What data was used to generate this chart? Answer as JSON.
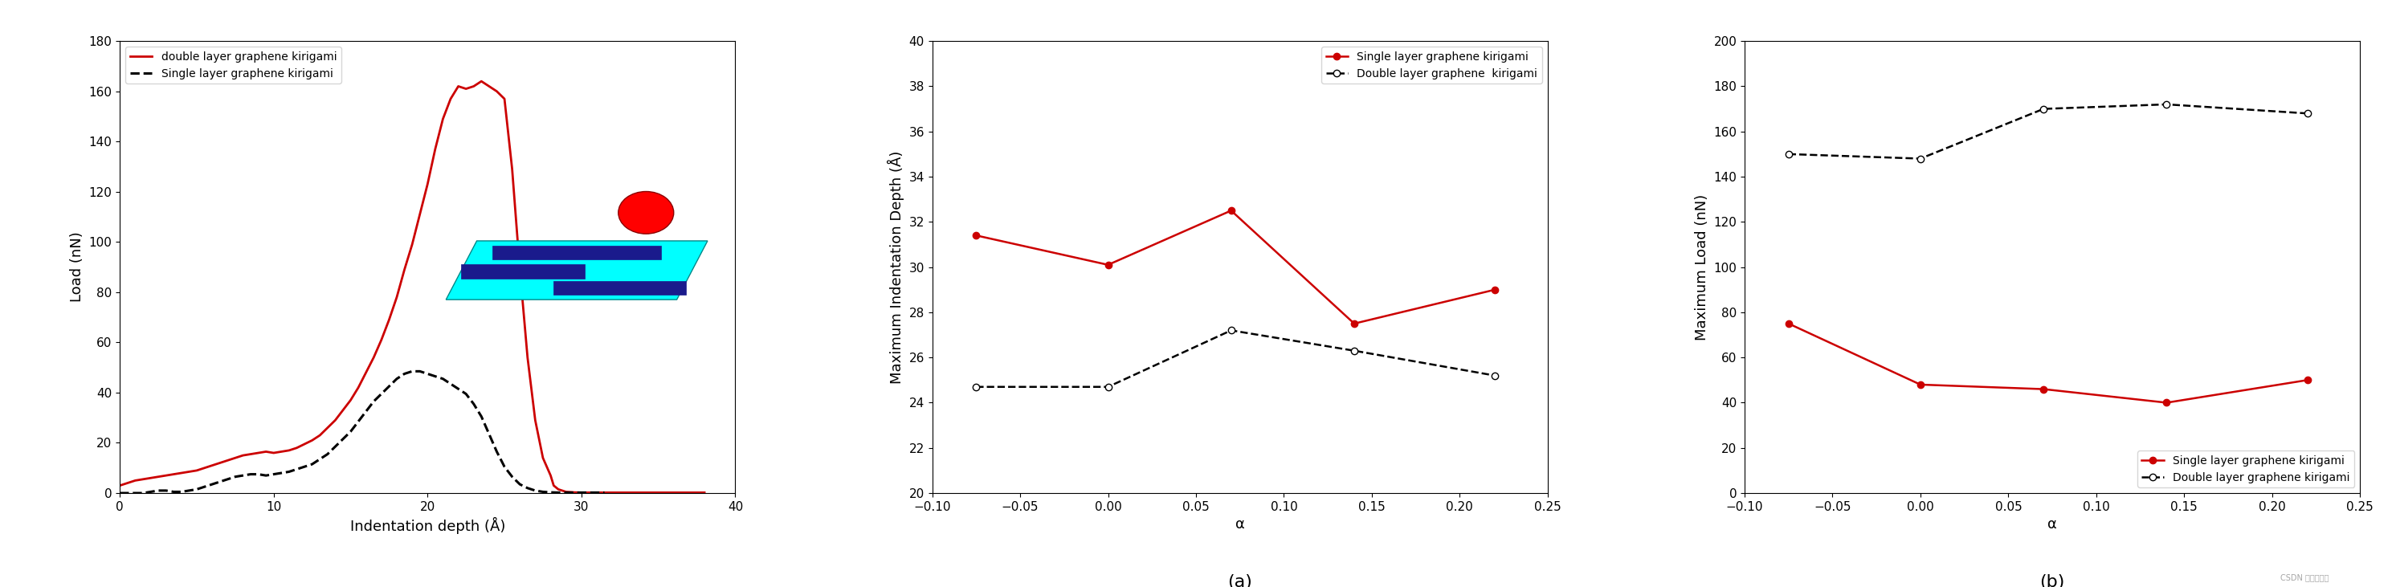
{
  "plot1": {
    "xlabel": "Indentation depth (Å)",
    "ylabel": "Load (nN)",
    "xlim": [
      0,
      40
    ],
    "ylim": [
      0,
      180
    ],
    "yticks": [
      0,
      20,
      40,
      60,
      80,
      100,
      120,
      140,
      160,
      180
    ],
    "xticks": [
      0,
      10,
      20,
      30,
      40
    ],
    "double_layer": {
      "label": "double layer graphene kirigami",
      "color": "#cc0000",
      "linestyle": "solid",
      "x": [
        0,
        0.5,
        1.0,
        1.5,
        2.0,
        2.5,
        3.0,
        3.5,
        4.0,
        4.5,
        5.0,
        5.5,
        6.0,
        6.5,
        7.0,
        7.5,
        8.0,
        8.5,
        9.0,
        9.5,
        10.0,
        10.5,
        11.0,
        11.5,
        12.0,
        12.5,
        13.0,
        13.5,
        14.0,
        14.5,
        15.0,
        15.5,
        16.0,
        16.5,
        17.0,
        17.5,
        18.0,
        18.5,
        19.0,
        19.5,
        20.0,
        20.5,
        21.0,
        21.5,
        22.0,
        22.5,
        23.0,
        23.5,
        24.0,
        24.5,
        25.0,
        25.5,
        26.0,
        26.5,
        27.0,
        27.5,
        28.0,
        28.2,
        28.5,
        29.0,
        29.5,
        30.0,
        30.5,
        31.0,
        31.5,
        32.0,
        33.0,
        34.0,
        35.0,
        36.0,
        37.0,
        38.0
      ],
      "y": [
        3,
        4,
        5,
        5.5,
        6,
        6.5,
        7,
        7.5,
        8,
        8.5,
        9,
        10,
        11,
        12,
        13,
        14,
        15,
        15.5,
        16,
        16.5,
        16,
        16.5,
        17,
        18,
        19.5,
        21,
        23,
        26,
        29,
        33,
        37,
        42,
        48,
        54,
        61,
        69,
        78,
        89,
        99,
        111,
        123,
        137,
        149,
        157,
        162,
        161,
        162,
        164,
        162,
        160,
        157,
        129,
        89,
        54,
        29,
        14,
        7,
        3,
        1.5,
        0.5,
        0.3,
        0.2,
        0.2,
        0.2,
        0.2,
        0.2,
        0.2,
        0.2,
        0.2,
        0.2,
        0.2,
        0.2
      ]
    },
    "single_layer": {
      "label": "Single layer graphene kirigami",
      "color": "#000000",
      "linestyle": "dashed",
      "x": [
        0,
        0.5,
        1.0,
        1.5,
        2.0,
        2.5,
        3.0,
        3.5,
        4.0,
        4.5,
        5.0,
        5.5,
        6.0,
        6.5,
        7.0,
        7.5,
        8.0,
        8.5,
        9.0,
        9.5,
        10.0,
        10.5,
        11.0,
        11.5,
        12.0,
        12.5,
        13.0,
        13.5,
        14.0,
        14.5,
        15.0,
        15.5,
        16.0,
        16.5,
        17.0,
        17.5,
        18.0,
        18.5,
        19.0,
        19.5,
        20.0,
        20.5,
        21.0,
        21.5,
        22.0,
        22.5,
        23.0,
        23.5,
        24.0,
        24.5,
        25.0,
        25.5,
        26.0,
        26.5,
        27.0,
        27.5,
        28.0,
        28.5,
        29.0,
        29.5,
        30.0,
        30.5,
        31.0,
        31.5
      ],
      "y": [
        0,
        0,
        0,
        0,
        0.5,
        1,
        1,
        0.5,
        0.5,
        1,
        1.5,
        2.5,
        3.5,
        4.5,
        5.5,
        6.5,
        7,
        7.5,
        7.5,
        7,
        7.5,
        8,
        8.5,
        9.5,
        10.5,
        11.5,
        13.5,
        15.5,
        18.5,
        21.5,
        24.5,
        28.5,
        32.5,
        36.5,
        39.5,
        42.5,
        45.5,
        47.5,
        48.5,
        48.5,
        47.5,
        46.5,
        45.5,
        43.5,
        41.5,
        39.5,
        35.5,
        30.5,
        23.5,
        16.5,
        10.5,
        6.5,
        3.5,
        2.0,
        1.0,
        0.5,
        0.3,
        0.2,
        0.2,
        0.2,
        0.2,
        0.2,
        0.2,
        0.2
      ]
    }
  },
  "plot2": {
    "title": "(a)",
    "xlabel": "α",
    "ylabel": "Maximum Indentation Depth (Å)",
    "xlim": [
      -0.1,
      0.25
    ],
    "ylim": [
      20,
      40
    ],
    "yticks": [
      20,
      22,
      24,
      26,
      28,
      30,
      32,
      34,
      36,
      38,
      40
    ],
    "xticks": [
      -0.1,
      -0.05,
      0,
      0.05,
      0.1,
      0.15,
      0.2,
      0.25
    ],
    "single_layer": {
      "label": "Single layer graphene kirigami",
      "color": "#cc0000",
      "x": [
        -0.075,
        0,
        0.07,
        0.14,
        0.22
      ],
      "y": [
        31.4,
        30.1,
        32.5,
        27.5,
        29.0
      ]
    },
    "double_layer": {
      "label": "Double layer graphene  kirigami",
      "color": "#000000",
      "x": [
        -0.075,
        0,
        0.07,
        0.14,
        0.22
      ],
      "y": [
        24.7,
        24.7,
        27.2,
        26.3,
        25.2
      ]
    }
  },
  "plot3": {
    "title": "(b)",
    "xlabel": "α",
    "ylabel": "Maximum Load (nN)",
    "xlim": [
      -0.1,
      0.25
    ],
    "ylim": [
      0,
      200
    ],
    "yticks": [
      0,
      20,
      40,
      60,
      80,
      100,
      120,
      140,
      160,
      180,
      200
    ],
    "xticks": [
      -0.1,
      -0.05,
      0,
      0.05,
      0.1,
      0.15,
      0.2,
      0.25
    ],
    "single_layer": {
      "label": "Single layer graphene kirigami",
      "color": "#cc0000",
      "x": [
        -0.075,
        0,
        0.07,
        0.14,
        0.22
      ],
      "y": [
        75,
        48,
        46,
        40,
        50
      ]
    },
    "double_layer": {
      "label": "Double layer graphene kirigami",
      "color": "#000000",
      "x": [
        -0.075,
        0,
        0.07,
        0.14,
        0.22
      ],
      "y": [
        150,
        148,
        170,
        172,
        168
      ]
    }
  },
  "inset": {
    "cyan_plate": [
      [
        1.0,
        1.5
      ],
      [
        8.5,
        1.5
      ],
      [
        9.5,
        4.0
      ],
      [
        2.0,
        4.0
      ]
    ],
    "bars": [
      [
        [
          2.5,
          3.2
        ],
        [
          8.0,
          3.2
        ],
        [
          8.0,
          3.8
        ],
        [
          2.5,
          3.8
        ]
      ],
      [
        [
          1.5,
          2.4
        ],
        [
          5.5,
          2.4
        ],
        [
          5.5,
          3.0
        ],
        [
          1.5,
          3.0
        ]
      ],
      [
        [
          4.5,
          1.7
        ],
        [
          8.8,
          1.7
        ],
        [
          8.8,
          2.3
        ],
        [
          4.5,
          2.3
        ]
      ]
    ],
    "sphere_x": 7.5,
    "sphere_y": 5.2,
    "sphere_r": 0.9
  },
  "watermark": "CSDN 中文快计息"
}
